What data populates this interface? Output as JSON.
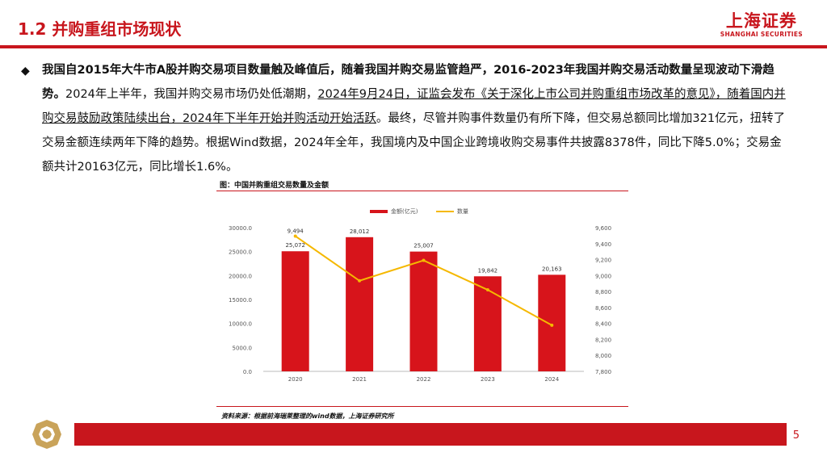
{
  "header": {
    "title": "1.2 并购重组市场现状",
    "logo_cn": "上海证券",
    "logo_en": "SHANGHAI SECURITIES"
  },
  "body": {
    "bullet": "◆",
    "bold_text": "我国自2015年大牛市A股并购交易项目数量触及峰值后，随着我国并购交易监管趋严，2016-2023年我国并购交易活动数量呈现波动下滑趋势。",
    "text1": "2024年上半年，我国并购交易市场仍处低潮期，",
    "underline_text": "2024年9月24日，证监会发布《关于深化上市公司并购重组市场改革的意见》，随着国内并购交易鼓励政策陆续出台，2024年下半年开始并购活动开始活跃",
    "text2": "。最终，尽管并购事件数量仍有所下降，但交易总额同比增加321亿元，扭转了交易金额连续两年下降的趋势。根据Wind数据，2024年全年，我国境内及中国企业跨境收购交易事件共披露8378件，同比下降5.0%；交易金额共计20163亿元，同比增长1.6%。"
  },
  "chart_title": "图：中国并购重组交易数量及金额",
  "source": "资料来源：根据前海瑞莱整理的wind数据，上海证券研究所",
  "page_number": "5",
  "chart_data": {
    "type": "bar",
    "categories": [
      "2020",
      "2021",
      "2022",
      "2023",
      "2024"
    ],
    "series": [
      {
        "name": "金额(亿元)",
        "type": "bar",
        "axis": "left",
        "color": "#d7141b",
        "values": [
          25072,
          28012,
          25007,
          19842,
          20163
        ],
        "labels": [
          "25,072",
          "28,012",
          "25,007",
          "19,842",
          "20,163"
        ]
      },
      {
        "name": "数量",
        "type": "line",
        "axis": "right",
        "color": "#f5b800",
        "values": [
          9494,
          8935,
          9190,
          8821,
          8378
        ],
        "labels": [
          "9,494",
          "",
          "",
          "",
          ""
        ]
      }
    ],
    "left_axis": {
      "ylim": [
        0,
        30000
      ],
      "ticks": [
        "0.0",
        "5000.0",
        "10000.0",
        "15000.0",
        "20000.0",
        "25000.0",
        "30000.0"
      ]
    },
    "right_axis": {
      "ylim": [
        7800,
        9600
      ],
      "ticks": [
        "7,800",
        "8,000",
        "8,200",
        "8,400",
        "8,600",
        "8,800",
        "9,000",
        "9,200",
        "9,400",
        "9,600"
      ]
    },
    "legend": "top-center",
    "grid": false
  },
  "colors": {
    "brand_red": "#c8161d",
    "bar": "#d7141b",
    "line": "#f5b800"
  }
}
